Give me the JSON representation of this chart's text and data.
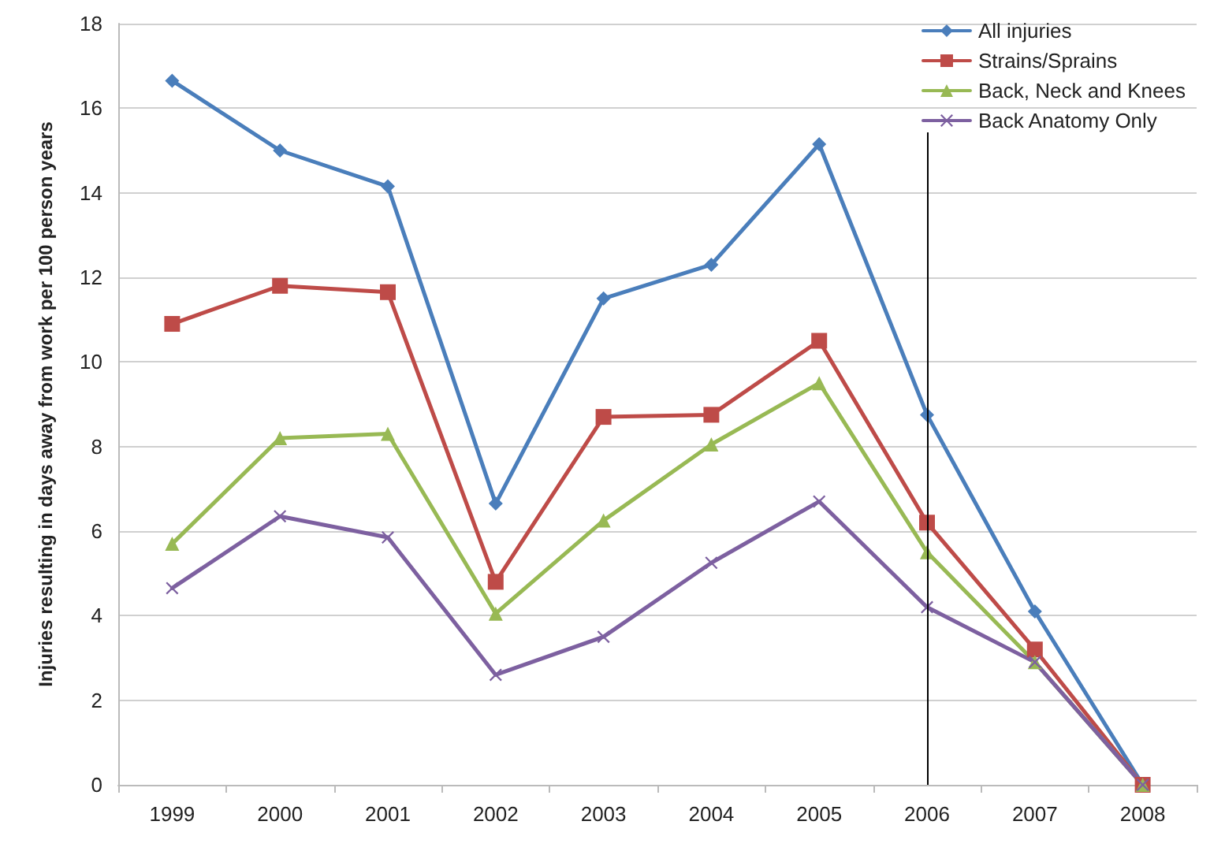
{
  "chart_data": {
    "type": "line",
    "ylabel": "Injuries resulting in days away from work per 100 person years",
    "categories": [
      "1999",
      "2000",
      "2001",
      "2002",
      "2003",
      "2004",
      "2005",
      "2006",
      "2007",
      "2008"
    ],
    "series": [
      {
        "name": "All injuries",
        "color": "#4a7ebb",
        "marker": "diamond",
        "values": [
          16.65,
          15.0,
          14.15,
          6.65,
          11.5,
          12.3,
          15.15,
          8.75,
          4.1,
          0
        ]
      },
      {
        "name": "Strains/Sprains",
        "color": "#be4b48",
        "marker": "square",
        "values": [
          10.9,
          11.8,
          11.65,
          4.8,
          8.7,
          8.75,
          10.5,
          6.2,
          3.2,
          0
        ]
      },
      {
        "name": "Back, Neck and Knees",
        "color": "#98b954",
        "marker": "triangle",
        "values": [
          5.7,
          8.2,
          8.3,
          4.05,
          6.25,
          8.05,
          9.5,
          5.5,
          2.9,
          0
        ]
      },
      {
        "name": "Back Anatomy Only",
        "color": "#7d60a0",
        "marker": "cross",
        "values": [
          4.65,
          6.35,
          5.85,
          2.6,
          3.5,
          5.25,
          6.7,
          4.2,
          2.9,
          0
        ]
      }
    ],
    "ylim": [
      0,
      18
    ],
    "yticks": [
      0,
      2,
      4,
      6,
      8,
      10,
      12,
      14,
      16,
      18
    ],
    "grid": "y",
    "legend": "top right",
    "ref_lines": [
      {
        "axis": "x",
        "value": "2006",
        "color": "#000000"
      }
    ]
  }
}
